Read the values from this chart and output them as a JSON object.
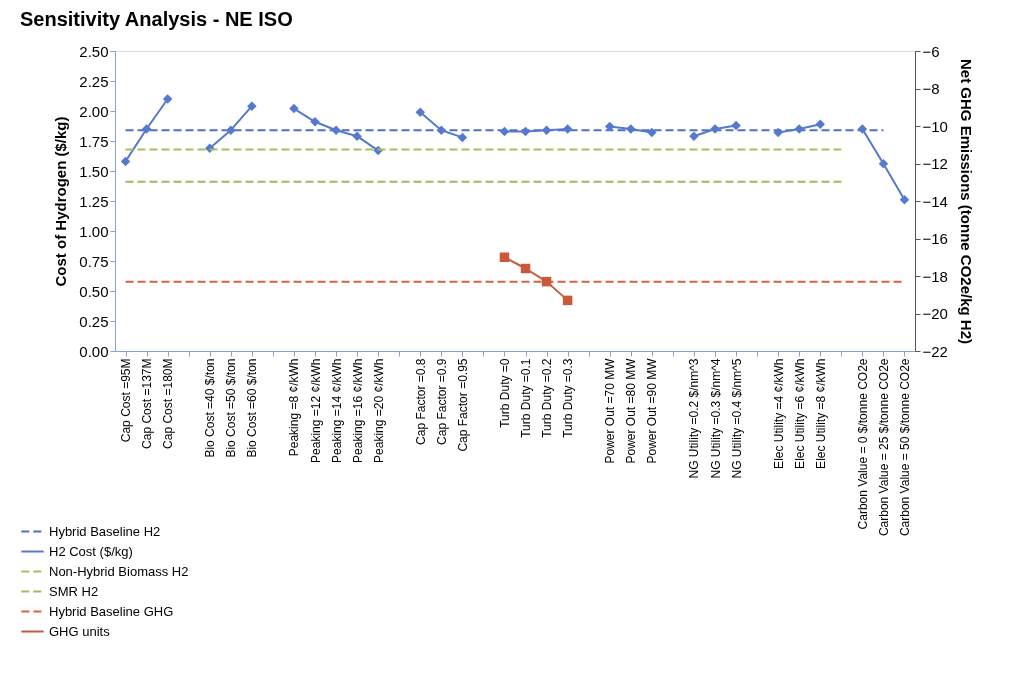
{
  "chart_data": {
    "type": "line",
    "title": "Sensitivity Analysis - NE ISO",
    "ylabel": "Cost of Hydrogen ($/kg)",
    "y2label": "Net GHG Emissions (tonne CO2e/kg H2)",
    "categories": [
      "Cap Cost =95M",
      "Cap Cost =137M",
      "Cap Cost =180M",
      null,
      "Bio Cost =40 $/ton",
      "Bio Cost =50 $/ton",
      "Bio Cost =60 $/ton",
      null,
      "Peaking =8 ¢/kWh",
      "Peaking =12 ¢/kWh",
      "Peaking =14 ¢/kWh",
      "Peaking =16 ¢/kWh",
      "Peaking =20 ¢/kWh",
      null,
      "Cap Factor =0.8",
      "Cap Factor =0.9",
      "Cap Factor =0.95",
      null,
      "Turb Duty =0",
      "Turb Duty =0.1",
      "Turb Duty =0.2",
      "Turb Duty =0.3",
      null,
      "Power Out =70 MW",
      "Power Out =80 MW",
      "Power Out =90 MW",
      null,
      "NG Utility =0.2 $/nm^3",
      "NG Utility =0.3 $/nm^4",
      "NG Utility =0.4 $/nm^5",
      null,
      "Elec Utility =4 ¢/kWh",
      "Elec Utility =6 ¢/kWh",
      "Elec Utility =8 ¢/kWh",
      null,
      "Carbon Value = 0 $/tonne CO2e",
      "Carbon Value = 25 $/tonne CO2e",
      "Carbon Value = 50 $/tonne CO2e"
    ],
    "series": [
      {
        "name": "Hybrid Baseline H2",
        "color": "#4f6fc9",
        "line_style": "dashed",
        "marker": "none",
        "values": [
          1.84,
          1.84,
          1.84,
          1.84,
          1.84,
          1.84,
          1.84,
          1.84,
          1.84,
          1.84,
          1.84,
          1.84,
          1.84,
          1.84,
          1.84,
          1.84,
          1.84,
          1.84,
          1.84,
          1.84,
          1.84,
          1.84,
          1.84,
          1.84,
          1.84,
          1.84,
          1.84,
          1.84,
          1.84,
          1.84,
          1.84,
          1.84,
          1.84,
          1.84,
          1.84,
          1.84,
          1.84,
          null
        ]
      },
      {
        "name": "H2 Cost ($/kg)",
        "color": "#5479cf",
        "line_style": "solid",
        "marker": "diamond",
        "values": [
          1.58,
          1.85,
          2.1,
          null,
          1.69,
          1.84,
          2.04,
          null,
          2.02,
          1.91,
          1.84,
          1.79,
          1.67,
          null,
          1.99,
          1.84,
          1.78,
          null,
          1.83,
          1.83,
          1.84,
          1.85,
          null,
          1.87,
          1.85,
          1.82,
          null,
          1.79,
          1.85,
          1.88,
          null,
          1.82,
          1.85,
          1.89,
          null,
          1.85,
          1.56,
          1.26
        ]
      },
      {
        "name": "Non-Hybrid Biomass H2",
        "color": "#a3c05a",
        "line_style": "dashed",
        "marker": "none",
        "values": [
          1.68,
          1.68,
          1.68,
          1.68,
          1.68,
          1.68,
          1.68,
          1.68,
          1.68,
          1.68,
          1.68,
          1.68,
          1.68,
          1.68,
          1.68,
          1.68,
          1.68,
          1.68,
          1.68,
          1.68,
          1.68,
          1.68,
          1.68,
          1.68,
          1.68,
          1.68,
          1.68,
          1.68,
          1.68,
          1.68,
          1.68,
          1.68,
          1.68,
          1.68,
          1.68,
          null,
          null,
          null
        ]
      },
      {
        "name": "SMR H2",
        "color": "#9cbc5a",
        "line_style": "dashed",
        "marker": "none",
        "values": [
          1.41,
          1.41,
          1.41,
          1.41,
          1.41,
          1.41,
          1.41,
          1.41,
          1.41,
          1.41,
          1.41,
          1.41,
          1.41,
          1.41,
          1.41,
          1.41,
          1.41,
          1.41,
          1.41,
          1.41,
          1.41,
          1.41,
          1.41,
          1.41,
          1.41,
          1.41,
          1.41,
          1.41,
          1.41,
          1.41,
          1.41,
          1.41,
          1.41,
          1.41,
          1.41,
          null,
          null,
          null
        ]
      },
      {
        "name": "Hybrid Baseline GHG",
        "color": "#d9623e",
        "line_style": "dashed",
        "marker": "none",
        "axis": "y2",
        "values": [
          -18.3,
          -18.3,
          -18.3,
          -18.3,
          -18.3,
          -18.3,
          -18.3,
          -18.3,
          -18.3,
          -18.3,
          -18.3,
          -18.3,
          -18.3,
          -18.3,
          -18.3,
          -18.3,
          -18.3,
          -18.3,
          -18.3,
          -18.3,
          -18.3,
          -18.3,
          -18.3,
          -18.3,
          -18.3,
          -18.3,
          -18.3,
          -18.3,
          -18.3,
          -18.3,
          -18.3,
          -18.3,
          -18.3,
          -18.3,
          -18.3,
          -18.3,
          -18.3,
          -18.3
        ]
      },
      {
        "name": "GHG units",
        "color": "#c9593a",
        "line_style": "solid",
        "marker": "square",
        "axis": "y2",
        "values": [
          null,
          null,
          null,
          null,
          null,
          null,
          null,
          null,
          null,
          null,
          null,
          null,
          null,
          null,
          null,
          null,
          null,
          null,
          -17.0,
          -17.6,
          -18.3,
          -19.3,
          null,
          null,
          null,
          null,
          null,
          null,
          null,
          null,
          null,
          null,
          null,
          null,
          null,
          null,
          null,
          null
        ]
      }
    ],
    "ylim": [
      0,
      2.5
    ],
    "yticks": [
      {
        "value": 0,
        "label": "0.00"
      },
      {
        "value": 0.25,
        "label": "0.25"
      },
      {
        "value": 0.5,
        "label": "0.50"
      },
      {
        "value": 0.75,
        "label": "0.75"
      },
      {
        "value": 1,
        "label": "1.00"
      },
      {
        "value": 1.25,
        "label": "1.25"
      },
      {
        "value": 1.5,
        "label": "1.50"
      },
      {
        "value": 1.75,
        "label": "1.75"
      },
      {
        "value": 2,
        "label": "2.00"
      },
      {
        "value": 2.25,
        "label": "2.25"
      },
      {
        "value": 2.5,
        "label": "2.50"
      }
    ],
    "y2lim": [
      -22,
      -6
    ],
    "y2ticks": [
      -22,
      -20,
      -18,
      -16,
      -14,
      -12,
      -10,
      -8,
      -6
    ],
    "grid": false,
    "legend": "bottom left"
  }
}
